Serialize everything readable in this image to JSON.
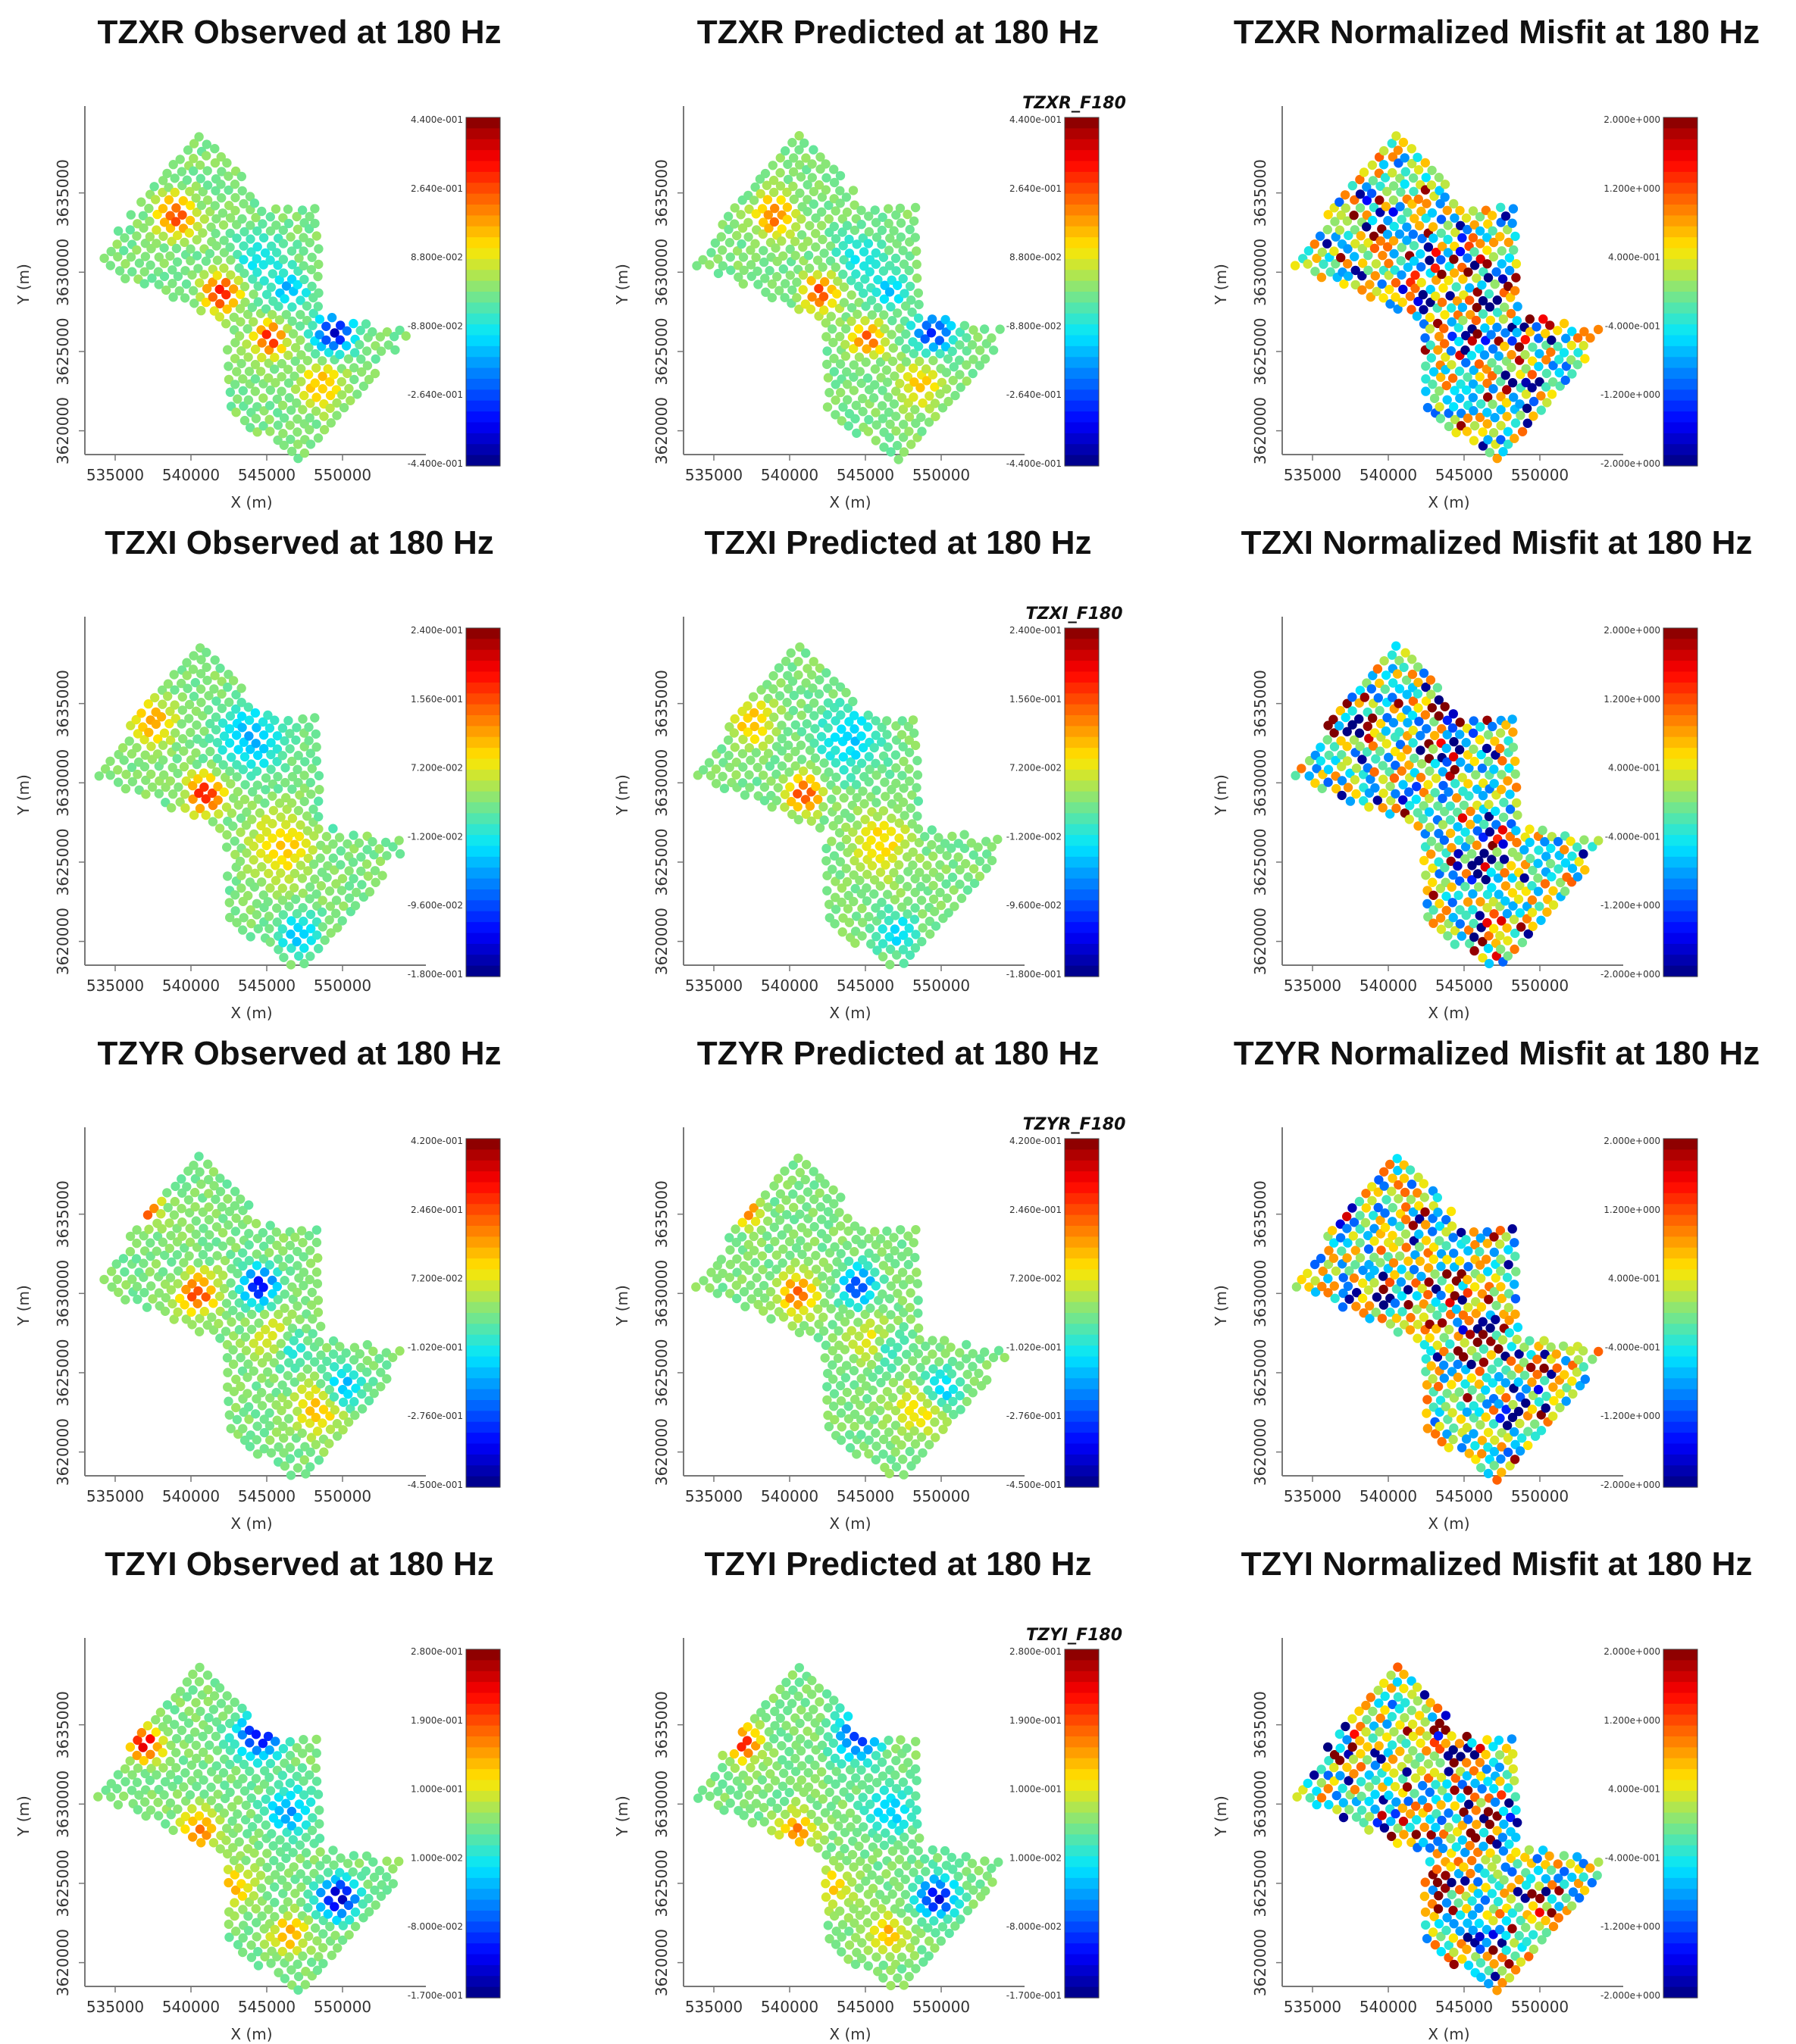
{
  "colors": {
    "low": "#0000ff",
    "mid": "#00e000",
    "high": "#ff0000"
  },
  "panel_titles": [
    "TZXR Observed at 180 Hz",
    "TZXR Predicted at 180 Hz",
    "TZXR Normalized Misfit at 180 Hz",
    "TZXI Observed at 180 Hz",
    "TZXI Predicted at 180 Hz",
    "TZXI Normalized Misfit at 180 Hz",
    "TZYR Observed at 180 Hz",
    "TZYR Predicted at 180 Hz",
    "TZYR Normalized Misfit at 180 Hz",
    "TZYI Observed at 180 Hz",
    "TZYI Predicted at 180 Hz",
    "TZYI Normalized Misfit at 180 Hz"
  ],
  "chart_data": [
    {
      "type": "scatter",
      "title": "TZXR Observed at 180 Hz",
      "xlabel": "X (m)",
      "ylabel": "Y (m)",
      "xticks": [
        "535000",
        "540000",
        "545000",
        "550000"
      ],
      "yticks": [
        "3620000",
        "3625000",
        "3630000",
        "3635000"
      ],
      "xlim": [
        533000,
        555000
      ],
      "ylim": [
        3618500,
        3640000
      ],
      "colorbar_label": "",
      "colorbar_ticks": [
        "4.400e-001",
        "2.640e-001",
        "8.800e-002",
        "-8.800e-002",
        "-2.640e-001",
        "-4.400e-001"
      ],
      "clim": [
        -0.44,
        0.44
      ]
    },
    {
      "type": "scatter",
      "title": "TZXR Predicted at 180 Hz",
      "xlabel": "X (m)",
      "ylabel": "Y (m)",
      "xticks": [
        "535000",
        "540000",
        "545000",
        "550000"
      ],
      "yticks": [
        "3620000",
        "3625000",
        "3630000",
        "3635000"
      ],
      "xlim": [
        533000,
        555000
      ],
      "ylim": [
        3618500,
        3640000
      ],
      "colorbar_label": "TZXR_F180",
      "colorbar_ticks": [
        "4.400e-001",
        "2.640e-001",
        "8.800e-002",
        "-8.800e-002",
        "-2.640e-001",
        "-4.400e-001"
      ],
      "clim": [
        -0.44,
        0.44
      ]
    },
    {
      "type": "scatter",
      "title": "TZXR Normalized Misfit at 180 Hz",
      "xlabel": "X (m)",
      "ylabel": "Y (m)",
      "xticks": [
        "535000",
        "540000",
        "545000",
        "550000"
      ],
      "yticks": [
        "3620000",
        "3625000",
        "3630000",
        "3635000"
      ],
      "xlim": [
        533000,
        555000
      ],
      "ylim": [
        3618500,
        3640000
      ],
      "colorbar_label": "",
      "colorbar_ticks": [
        "2.000e+000",
        "1.200e+000",
        "4.000e-001",
        "-4.000e-001",
        "-1.200e+000",
        "-2.000e+000"
      ],
      "clim": [
        -2.0,
        2.0
      ]
    },
    {
      "type": "scatter",
      "title": "TZXI Observed at 180 Hz",
      "xlabel": "X (m)",
      "ylabel": "Y (m)",
      "xticks": [
        "535000",
        "540000",
        "545000",
        "550000"
      ],
      "yticks": [
        "3620000",
        "3625000",
        "3630000",
        "3635000"
      ],
      "xlim": [
        533000,
        555000
      ],
      "ylim": [
        3618500,
        3640000
      ],
      "colorbar_label": "",
      "colorbar_ticks": [
        "2.400e-001",
        "1.560e-001",
        "7.200e-002",
        "-1.200e-002",
        "-9.600e-002",
        "-1.800e-001"
      ],
      "clim": [
        -0.18,
        0.24
      ]
    },
    {
      "type": "scatter",
      "title": "TZXI Predicted at 180 Hz",
      "xlabel": "X (m)",
      "ylabel": "Y (m)",
      "xticks": [
        "535000",
        "540000",
        "545000",
        "550000"
      ],
      "yticks": [
        "3620000",
        "3625000",
        "3630000",
        "3635000"
      ],
      "xlim": [
        533000,
        555000
      ],
      "ylim": [
        3618500,
        3640000
      ],
      "colorbar_label": "TZXI_F180",
      "colorbar_ticks": [
        "2.400e-001",
        "1.560e-001",
        "7.200e-002",
        "-1.200e-002",
        "-9.600e-002",
        "-1.800e-001"
      ],
      "clim": [
        -0.18,
        0.24
      ]
    },
    {
      "type": "scatter",
      "title": "TZXI Normalized Misfit at 180 Hz",
      "xlabel": "X (m)",
      "ylabel": "Y (m)",
      "xticks": [
        "535000",
        "540000",
        "545000",
        "550000"
      ],
      "yticks": [
        "3620000",
        "3625000",
        "3630000",
        "3635000"
      ],
      "xlim": [
        533000,
        555000
      ],
      "ylim": [
        3618500,
        3640000
      ],
      "colorbar_label": "",
      "colorbar_ticks": [
        "2.000e+000",
        "1.200e+000",
        "4.000e-001",
        "-4.000e-001",
        "-1.200e+000",
        "-2.000e+000"
      ],
      "clim": [
        -2.0,
        2.0
      ]
    },
    {
      "type": "scatter",
      "title": "TZYR Observed at 180 Hz",
      "xlabel": "X (m)",
      "ylabel": "Y (m)",
      "xticks": [
        "535000",
        "540000",
        "545000",
        "550000"
      ],
      "yticks": [
        "3620000",
        "3625000",
        "3630000",
        "3635000"
      ],
      "xlim": [
        533000,
        555000
      ],
      "ylim": [
        3618500,
        3640000
      ],
      "colorbar_label": "",
      "colorbar_ticks": [
        "4.200e-001",
        "2.460e-001",
        "7.200e-002",
        "-1.020e-001",
        "-2.760e-001",
        "-4.500e-001"
      ],
      "clim": [
        -0.45,
        0.42
      ]
    },
    {
      "type": "scatter",
      "title": "TZYR Predicted at 180 Hz",
      "xlabel": "X (m)",
      "ylabel": "Y (m)",
      "xticks": [
        "535000",
        "540000",
        "545000",
        "550000"
      ],
      "yticks": [
        "3620000",
        "3625000",
        "3630000",
        "3635000"
      ],
      "xlim": [
        533000,
        555000
      ],
      "ylim": [
        3618500,
        3640000
      ],
      "colorbar_label": "TZYR_F180",
      "colorbar_ticks": [
        "4.200e-001",
        "2.460e-001",
        "7.200e-002",
        "-1.020e-001",
        "-2.760e-001",
        "-4.500e-001"
      ],
      "clim": [
        -0.45,
        0.42
      ]
    },
    {
      "type": "scatter",
      "title": "TZYR Normalized Misfit at 180 Hz",
      "xlabel": "X (m)",
      "ylabel": "Y (m)",
      "xticks": [
        "535000",
        "540000",
        "545000",
        "550000"
      ],
      "yticks": [
        "3620000",
        "3625000",
        "3630000",
        "3635000"
      ],
      "xlim": [
        533000,
        555000
      ],
      "ylim": [
        3618500,
        3640000
      ],
      "colorbar_label": "",
      "colorbar_ticks": [
        "2.000e+000",
        "1.200e+000",
        "4.000e-001",
        "-4.000e-001",
        "-1.200e+000",
        "-2.000e+000"
      ],
      "clim": [
        -2.0,
        2.0
      ]
    },
    {
      "type": "scatter",
      "title": "TZYI Observed at 180 Hz",
      "xlabel": "X (m)",
      "ylabel": "Y (m)",
      "xticks": [
        "535000",
        "540000",
        "545000",
        "550000"
      ],
      "yticks": [
        "3620000",
        "3625000",
        "3630000",
        "3635000"
      ],
      "xlim": [
        533000,
        555000
      ],
      "ylim": [
        3618500,
        3640000
      ],
      "colorbar_label": "",
      "colorbar_ticks": [
        "2.800e-001",
        "1.900e-001",
        "1.000e-001",
        "1.000e-002",
        "-8.000e-002",
        "-1.700e-001"
      ],
      "clim": [
        -0.17,
        0.28
      ]
    },
    {
      "type": "scatter",
      "title": "TZYI Predicted at 180 Hz",
      "xlabel": "X (m)",
      "ylabel": "Y (m)",
      "xticks": [
        "535000",
        "540000",
        "545000",
        "550000"
      ],
      "yticks": [
        "3620000",
        "3625000",
        "3630000",
        "3635000"
      ],
      "xlim": [
        533000,
        555000
      ],
      "ylim": [
        3618500,
        3640000
      ],
      "colorbar_label": "TZYI_F180",
      "colorbar_ticks": [
        "2.800e-001",
        "1.900e-001",
        "1.000e-001",
        "1.000e-002",
        "-8.000e-002",
        "-1.700e-001"
      ],
      "clim": [
        -0.17,
        0.28
      ]
    },
    {
      "type": "scatter",
      "title": "TZYI Normalized Misfit at 180 Hz",
      "xlabel": "X (m)",
      "ylabel": "Y (m)",
      "xticks": [
        "535000",
        "540000",
        "545000",
        "550000"
      ],
      "yticks": [
        "3620000",
        "3625000",
        "3630000",
        "3635000"
      ],
      "xlim": [
        533000,
        555000
      ],
      "ylim": [
        3618500,
        3640000
      ],
      "colorbar_label": "",
      "colorbar_ticks": [
        "2.000e+000",
        "1.200e+000",
        "4.000e-001",
        "-4.000e-001",
        "-1.200e+000",
        "-2.000e+000"
      ],
      "clim": [
        -2.0,
        2.0
      ]
    }
  ]
}
